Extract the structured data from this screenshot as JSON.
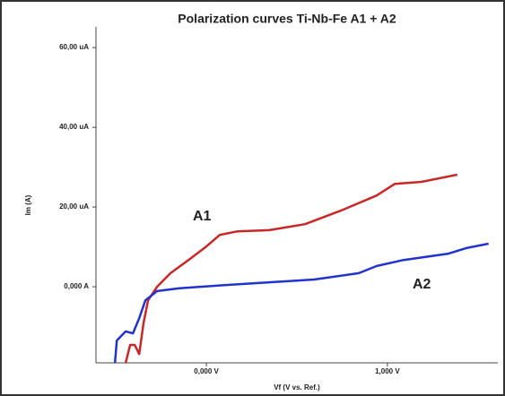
{
  "chart_data": {
    "type": "line",
    "title": "Polarization curves Ti-Nb-Fe A1 + A2",
    "xlabel": "Vf (V vs. Ref.)",
    "ylabel": "Im (A)",
    "xlim": [
      -0.61,
      1.61
    ],
    "ylim": [
      -19.1,
      65.2
    ],
    "xticks": [
      {
        "value": 0,
        "label": "0,000 V"
      },
      {
        "value": 1,
        "label": "1,000 V"
      }
    ],
    "yticks": [
      {
        "value": 0,
        "label": "0,000 A"
      },
      {
        "value": 20,
        "label": "20,00 uA"
      },
      {
        "value": 40,
        "label": "40,00 uA"
      },
      {
        "value": 60,
        "label": "60,00 uA"
      }
    ],
    "grid": false,
    "series": [
      {
        "name": "A1",
        "color": "#c62828",
        "x": [
          -0.446,
          -0.421,
          -0.396,
          -0.371,
          -0.347,
          -0.322,
          -0.272,
          -0.198,
          -0.099,
          0,
          0.074,
          0.173,
          0.347,
          0.545,
          0.743,
          0.941,
          1.04,
          1.188,
          1.386
        ],
        "values": [
          -19.1,
          -14.6,
          -14.6,
          -16.9,
          -9.0,
          -3.4,
          0,
          3.4,
          6.7,
          10.1,
          13.0,
          13.9,
          14.2,
          15.7,
          19.1,
          22.9,
          25.8,
          26.3,
          28.1
        ]
      },
      {
        "name": "A2",
        "color": "#2233cc",
        "x": [
          -0.505,
          -0.495,
          -0.446,
          -0.406,
          -0.371,
          -0.337,
          -0.272,
          -0.149,
          0.099,
          0.347,
          0.594,
          0.842,
          0.941,
          1.089,
          1.337,
          1.436,
          1.559
        ],
        "values": [
          -19.1,
          -13.5,
          -11.2,
          -11.7,
          -7.9,
          -3.4,
          -1.1,
          -0.4,
          0.4,
          1.1,
          1.8,
          3.4,
          5.2,
          6.7,
          8.3,
          9.7,
          10.8
        ]
      }
    ]
  }
}
